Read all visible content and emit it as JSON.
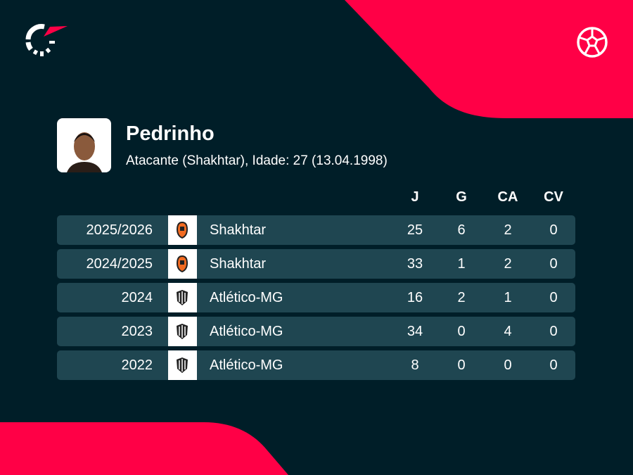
{
  "brand": {
    "accent": "#ff0046",
    "background": "#001e28",
    "row": "#1f4651",
    "logo_icon": "flashscore-logo-icon",
    "sport_icon": "soccer-ball-icon"
  },
  "player": {
    "name": "Pedrinho",
    "details": "Atacante (Shakhtar), Idade: 27 (13.04.1998)"
  },
  "columns": [
    "J",
    "G",
    "CA",
    "CV"
  ],
  "rows": [
    {
      "season": "2025/2026",
      "team": "Shakhtar",
      "crest": "shakhtar-crest-icon",
      "J": "25",
      "G": "6",
      "CA": "2",
      "CV": "0"
    },
    {
      "season": "2024/2025",
      "team": "Shakhtar",
      "crest": "shakhtar-crest-icon",
      "J": "33",
      "G": "1",
      "CA": "2",
      "CV": "0"
    },
    {
      "season": "2024",
      "team": "Atlético-MG",
      "crest": "atletico-mg-crest-icon",
      "J": "16",
      "G": "2",
      "CA": "1",
      "CV": "0"
    },
    {
      "season": "2023",
      "team": "Atlético-MG",
      "crest": "atletico-mg-crest-icon",
      "J": "34",
      "G": "0",
      "CA": "4",
      "CV": "0"
    },
    {
      "season": "2022",
      "team": "Atlético-MG",
      "crest": "atletico-mg-crest-icon",
      "J": "8",
      "G": "0",
      "CA": "0",
      "CV": "0"
    }
  ]
}
